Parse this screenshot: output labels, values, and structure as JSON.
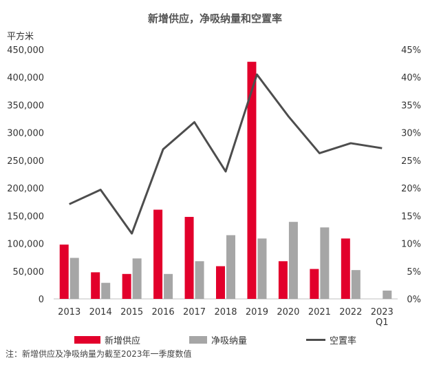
{
  "colors": {
    "supply": "#e2002b",
    "absorption": "#a6a6a6",
    "vacancy": "#4d4d4d",
    "axis": "#bfbfbf"
  },
  "chart_data": {
    "type": "bar",
    "title": "新增供应，净吸纳量和空置率",
    "ylabel": "平方米",
    "ylim": [
      0,
      450000
    ],
    "y2lim": [
      0,
      45
    ],
    "y_ticks": [
      "0",
      "50,000",
      "100,000",
      "150,000",
      "200,000",
      "250,000",
      "300,000",
      "350,000",
      "400,000",
      "450,000"
    ],
    "y2_ticks": [
      "0%",
      "5%",
      "10%",
      "15%",
      "20%",
      "25%",
      "30%",
      "35%",
      "40%",
      "45%"
    ],
    "categories": [
      [
        "2013"
      ],
      [
        "2014"
      ],
      [
        "2015"
      ],
      [
        "2016"
      ],
      [
        "2017"
      ],
      [
        "2018"
      ],
      [
        "2019"
      ],
      [
        "2020"
      ],
      [
        "2021"
      ],
      [
        "2022"
      ],
      [
        "2023",
        "Q1"
      ]
    ],
    "series": [
      {
        "name": "新增供应",
        "type": "bar",
        "axis": "left",
        "values": [
          98000,
          48000,
          45000,
          161000,
          148000,
          59000,
          428000,
          68000,
          54000,
          109000,
          0
        ]
      },
      {
        "name": "净吸纳量",
        "type": "bar",
        "axis": "left",
        "values": [
          74000,
          29000,
          73000,
          45000,
          68000,
          115000,
          109000,
          139000,
          129000,
          52000,
          15000
        ]
      },
      {
        "name": "空置率",
        "type": "line",
        "axis": "right",
        "values": [
          17.1,
          19.7,
          11.8,
          27.0,
          31.9,
          23.0,
          40.5,
          33.0,
          26.3,
          28.1,
          27.2
        ]
      }
    ],
    "grid": false,
    "legend_position": "bottom",
    "note": "注：新增供应及净吸纳量为截至2023年一季度数值"
  }
}
